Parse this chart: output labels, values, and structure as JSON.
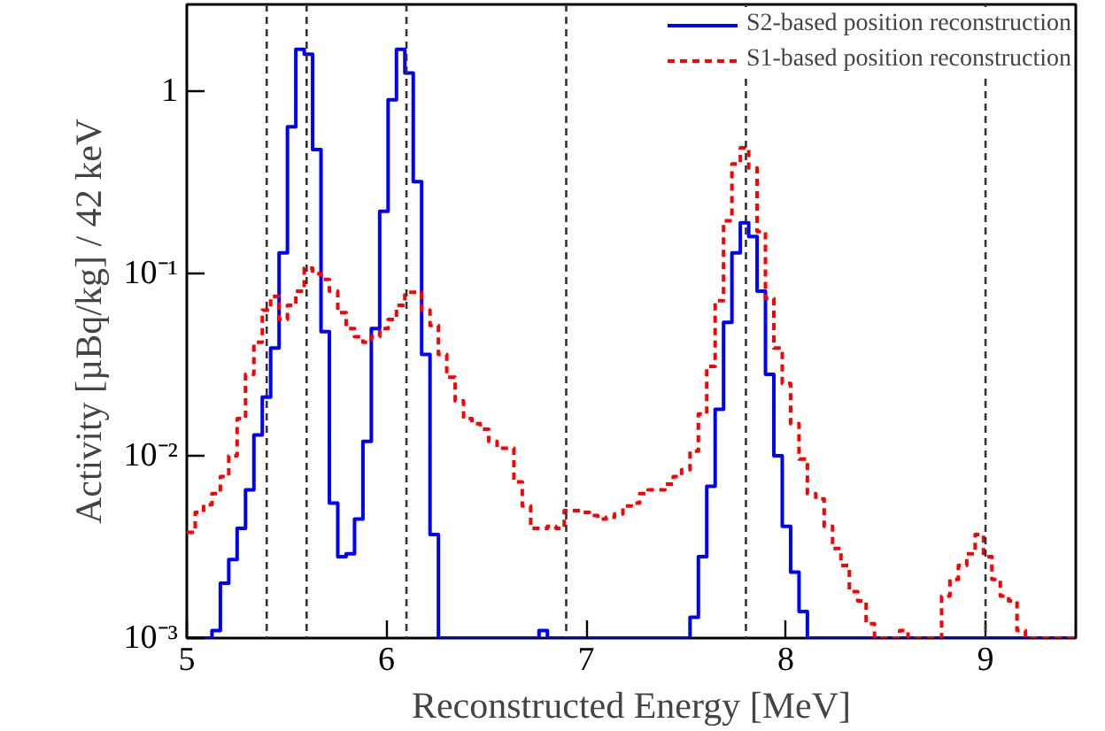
{
  "chart_data": {
    "type": "histogram",
    "xlabel": "Reconstructed Energy [MeV]",
    "ylabel": "Activity [µBq/kg] / 42 keV",
    "bins": [
      5,
      5.042,
      5.084,
      5.126,
      5.168,
      5.21,
      5.252,
      5.294,
      5.336,
      5.378,
      5.42,
      5.462,
      5.504,
      5.546,
      5.588,
      5.63,
      5.672,
      5.714,
      5.756,
      5.798,
      5.84,
      5.882,
      5.924,
      5.966,
      6.008,
      6.05,
      6.092,
      6.134,
      6.176,
      6.218,
      6.26,
      6.302,
      6.344,
      6.386,
      6.428,
      6.47,
      6.512,
      6.554,
      6.596,
      6.638,
      6.68,
      6.722,
      6.764,
      6.806,
      6.848,
      6.89,
      6.932,
      6.974,
      7.016,
      7.058,
      7.1,
      7.142,
      7.184,
      7.226,
      7.268,
      7.31,
      7.352,
      7.394,
      7.436,
      7.478,
      7.52,
      7.562,
      7.604,
      7.646,
      7.688,
      7.73,
      7.772,
      7.814,
      7.856,
      7.898,
      7.94,
      7.982,
      8.024,
      8.066,
      8.108,
      8.15,
      8.192,
      8.234,
      8.276,
      8.318,
      8.36,
      8.402,
      8.444,
      8.486,
      8.528,
      8.57,
      8.612,
      8.654,
      8.696,
      8.738,
      8.78,
      8.822,
      8.864,
      8.906,
      8.948,
      8.99,
      9.032,
      9.074,
      9.116,
      9.158,
      9.2,
      9.242,
      9.284,
      9.326,
      9.368,
      9.41,
      9.452
    ],
    "series": [
      {
        "name": "S2-based position reconstruction",
        "color": "#0000ff",
        "line_style": "solid",
        "values": [
          null,
          null,
          null,
          0.0011,
          0.002,
          0.0027,
          0.004,
          0.0065,
          0.013,
          0.021,
          0.039,
          0.13,
          0.64,
          1.7,
          1.6,
          0.48,
          0.048,
          0.0055,
          0.0028,
          0.0029,
          0.0045,
          0.012,
          0.05,
          0.22,
          0.9,
          1.7,
          1.26,
          0.32,
          0.036,
          0.0037,
          null,
          null,
          null,
          null,
          null,
          null,
          null,
          null,
          null,
          null,
          null,
          null,
          0.0011,
          null,
          null,
          null,
          null,
          null,
          null,
          null,
          null,
          null,
          null,
          null,
          null,
          null,
          null,
          null,
          null,
          null,
          0.0013,
          0.0028,
          0.0068,
          0.018,
          0.054,
          0.13,
          0.19,
          0.16,
          0.08,
          0.028,
          0.01,
          0.0041,
          0.0023,
          0.0014,
          null,
          null,
          null,
          null,
          null,
          null,
          null,
          null,
          null,
          null,
          null,
          null,
          null,
          null,
          null,
          null,
          null,
          null,
          null,
          null,
          null,
          null,
          null,
          null,
          null,
          null,
          null,
          null,
          null,
          null,
          null,
          null
        ]
      },
      {
        "name": "S1-based position reconstruction",
        "color": "#ff0000",
        "line_style": "dashed",
        "values": [
          0.0038,
          0.0049,
          0.0054,
          0.0062,
          0.0077,
          0.01,
          0.016,
          0.028,
          0.042,
          0.063,
          0.075,
          0.056,
          0.067,
          0.08,
          0.107,
          0.1,
          0.093,
          0.08,
          0.061,
          0.05,
          0.045,
          0.042,
          0.045,
          0.05,
          0.056,
          0.067,
          0.079,
          0.079,
          0.063,
          0.052,
          0.036,
          0.027,
          0.02,
          0.016,
          0.015,
          0.014,
          0.012,
          0.011,
          0.011,
          0.0072,
          0.0053,
          0.004,
          0.004,
          0.0041,
          0.004,
          0.005,
          0.005,
          0.0049,
          0.0047,
          0.0045,
          0.0046,
          0.0048,
          0.0053,
          0.0055,
          0.0062,
          0.0065,
          0.0065,
          0.007,
          0.0077,
          0.0084,
          0.0106,
          0.017,
          0.031,
          0.071,
          0.195,
          0.4,
          0.49,
          0.38,
          0.17,
          0.073,
          0.039,
          0.025,
          0.015,
          0.0096,
          0.0062,
          0.0058,
          0.0041,
          0.0031,
          0.0025,
          0.0018,
          0.0016,
          0.0012,
          null,
          null,
          null,
          0.0011,
          null,
          null,
          null,
          null,
          0.0017,
          0.0021,
          0.0025,
          0.0029,
          0.0037,
          0.0028,
          0.0021,
          0.0017,
          0.0016,
          0.0011,
          null,
          null,
          null,
          null,
          null,
          null
        ]
      }
    ],
    "xlim": [
      5,
      9.452
    ],
    "ylim": [
      0.001,
      3
    ],
    "xticks": [
      5,
      6,
      7,
      8,
      9
    ],
    "yticks": [
      {
        "value": 0.001,
        "label": "10⁻³"
      },
      {
        "value": 0.01,
        "label": "10⁻²"
      },
      {
        "value": 0.1,
        "label": "10⁻¹"
      },
      {
        "value": 1,
        "label": "1"
      }
    ],
    "log": true,
    "legend": "top right",
    "ref_lines": [
      {
        "axis": "x",
        "value": 5.4,
        "color": "#333333",
        "line_style": "dashed"
      },
      {
        "axis": "x",
        "value": 5.6,
        "color": "#333333",
        "line_style": "dashed"
      },
      {
        "axis": "x",
        "value": 6.1,
        "color": "#333333",
        "line_style": "dashed"
      },
      {
        "axis": "x",
        "value": 6.9,
        "color": "#333333",
        "line_style": "dashed"
      },
      {
        "axis": "x",
        "value": 7.8,
        "color": "#333333",
        "line_style": "dashed"
      },
      {
        "axis": "x",
        "value": 9.0,
        "color": "#333333",
        "line_style": "dashed"
      }
    ]
  }
}
